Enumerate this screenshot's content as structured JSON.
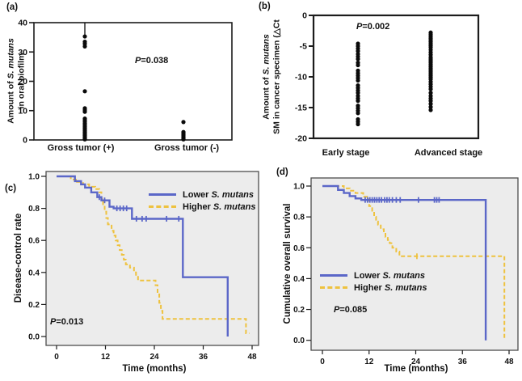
{
  "colors": {
    "lower_line": "#5b67c8",
    "higher_line": "#eec23f",
    "dot": "#0a0a0a",
    "km_plot_bg": "#ececec",
    "axis": "#1c1c1c"
  },
  "chart_data": [
    {
      "panel_label": "(a)",
      "type": "scatter",
      "ylabel_prefix": "Amount of ",
      "ylabel_species": "S. mutans",
      "ylabel_line2": "in oral biofilm",
      "categories": [
        "Gross tumor (+)",
        "Gross tumor (-)"
      ],
      "ylim": [
        0,
        40
      ],
      "yticks": [
        40,
        30,
        20,
        10,
        0
      ],
      "p_label": "P",
      "p_value": "=0.038",
      "stem": {
        "category_index": 0,
        "from": 40,
        "to": 35.3
      },
      "groups": [
        [
          35.3,
          33.5,
          32.8,
          31.9,
          16.6,
          10.8,
          10.2,
          9.6,
          7.3,
          6.8,
          6.2,
          5.6,
          5.1,
          4.6,
          4.1,
          3.6,
          3.1,
          2.7,
          2.3,
          1.9,
          1.5,
          1.1,
          0.8,
          0.5,
          0.2
        ],
        [
          6.1,
          2.7,
          2.2,
          1.8,
          1.4,
          1.0,
          0.7,
          0.4,
          0.2
        ]
      ]
    },
    {
      "panel_label": "(b)",
      "type": "scatter",
      "ylabel_prefix": "Amount of ",
      "ylabel_species": "S. mutans",
      "ylabel_line2": "SM in cancer specimen (△Ct",
      "categories": [
        "Early stage",
        "Advanced stage"
      ],
      "ylim": [
        -20,
        0
      ],
      "yticks": [
        0,
        -5,
        -10,
        -15,
        -20
      ],
      "p_label": "P",
      "p_value": "=0.002",
      "groups": [
        [
          -4.6,
          -5.0,
          -5.4,
          -5.8,
          -6.3,
          -6.7,
          -7.1,
          -7.7,
          -8.1,
          -9.0,
          -9.4,
          -9.8,
          -10.2,
          -10.6,
          -11.4,
          -11.8,
          -12.2,
          -12.6,
          -13.1,
          -13.5,
          -13.9,
          -14.7,
          -15.1,
          -15.5,
          -15.9,
          -16.9,
          -17.3,
          -17.7
        ],
        [
          -2.8,
          -3.1,
          -3.4,
          -3.7,
          -4.0,
          -4.3,
          -4.6,
          -4.9,
          -5.2,
          -5.6,
          -6.0,
          -6.4,
          -6.8,
          -7.1,
          -7.4,
          -7.7,
          -8.0,
          -8.3,
          -8.6,
          -8.9,
          -9.2,
          -9.5,
          -9.8,
          -10.1,
          -10.4,
          -10.8,
          -11.2,
          -11.6,
          -12.0,
          -12.6,
          -13.1,
          -13.5,
          -13.9,
          -14.4,
          -14.9,
          -15.4
        ]
      ]
    },
    {
      "panel_label": "(c)",
      "type": "line",
      "subtype": "kaplan_meier",
      "ylabel": "Disease-control rate",
      "xlabel": "Time (months)",
      "ylim": [
        0,
        1
      ],
      "yticks": [
        1.0,
        0.8,
        0.6,
        0.4,
        0.2,
        0.0
      ],
      "xlim": [
        0,
        48
      ],
      "xticks": [
        0,
        12,
        24,
        36,
        48
      ],
      "p_label": "P",
      "p_value": "=0.013",
      "legend": {
        "lower_prefix": "Lower ",
        "higher_prefix": "Higher ",
        "species": "S. mutans"
      },
      "series": [
        {
          "name": "Lower S. mutans",
          "color": "#5b67c8",
          "style": "solid",
          "steps": [
            [
              0,
              1
            ],
            [
              4.5,
              1
            ],
            [
              4.5,
              0.97
            ],
            [
              6,
              0.97
            ],
            [
              6,
              0.95
            ],
            [
              7,
              0.95
            ],
            [
              7,
              0.93
            ],
            [
              8.5,
              0.93
            ],
            [
              8.5,
              0.9
            ],
            [
              10,
              0.9
            ],
            [
              10,
              0.87
            ],
            [
              11,
              0.87
            ],
            [
              11,
              0.85
            ],
            [
              13,
              0.85
            ],
            [
              13,
              0.81
            ],
            [
              14,
              0.81
            ],
            [
              14,
              0.8
            ],
            [
              18.5,
              0.8
            ],
            [
              18.5,
              0.735
            ],
            [
              31,
              0.735
            ],
            [
              31,
              0.37
            ],
            [
              42,
              0.37
            ],
            [
              42,
              0
            ]
          ],
          "censors": [
            [
              10.5,
              0.87
            ],
            [
              11.8,
              0.85
            ],
            [
              14.8,
              0.8
            ],
            [
              15.6,
              0.8
            ],
            [
              16.4,
              0.8
            ],
            [
              17.2,
              0.8
            ],
            [
              19.6,
              0.735
            ],
            [
              21,
              0.735
            ],
            [
              22,
              0.735
            ],
            [
              27,
              0.735
            ],
            [
              30,
              0.735
            ]
          ]
        },
        {
          "name": "Higher S. mutans",
          "color": "#eec23f",
          "style": "dashed",
          "steps": [
            [
              0,
              1
            ],
            [
              3.5,
              1
            ],
            [
              3.5,
              0.98
            ],
            [
              5,
              0.98
            ],
            [
              5,
              0.965
            ],
            [
              6.5,
              0.965
            ],
            [
              6.5,
              0.95
            ],
            [
              8,
              0.95
            ],
            [
              8,
              0.935
            ],
            [
              9.5,
              0.935
            ],
            [
              9.5,
              0.92
            ],
            [
              10.5,
              0.92
            ],
            [
              10.5,
              0.9
            ],
            [
              11,
              0.9
            ],
            [
              11,
              0.86
            ],
            [
              11.4,
              0.86
            ],
            [
              11.4,
              0.82
            ],
            [
              11.8,
              0.82
            ],
            [
              11.8,
              0.78
            ],
            [
              12.2,
              0.78
            ],
            [
              12.2,
              0.74
            ],
            [
              12.6,
              0.74
            ],
            [
              12.6,
              0.7
            ],
            [
              13.5,
              0.7
            ],
            [
              13.5,
              0.66
            ],
            [
              14,
              0.66
            ],
            [
              14,
              0.63
            ],
            [
              14.5,
              0.63
            ],
            [
              14.5,
              0.6
            ],
            [
              15,
              0.6
            ],
            [
              15,
              0.57
            ],
            [
              15.5,
              0.57
            ],
            [
              15.5,
              0.54
            ],
            [
              16,
              0.54
            ],
            [
              16,
              0.51
            ],
            [
              16.5,
              0.51
            ],
            [
              16.5,
              0.48
            ],
            [
              17,
              0.48
            ],
            [
              17,
              0.45
            ],
            [
              18,
              0.45
            ],
            [
              18,
              0.43
            ],
            [
              19,
              0.43
            ],
            [
              19,
              0.4
            ],
            [
              19.5,
              0.4
            ],
            [
              19.5,
              0.38
            ],
            [
              20,
              0.38
            ],
            [
              20,
              0.35
            ],
            [
              24.3,
              0.35
            ],
            [
              24.3,
              0.32
            ],
            [
              24.8,
              0.32
            ],
            [
              24.8,
              0.27
            ],
            [
              25.2,
              0.27
            ],
            [
              25.2,
              0.21
            ],
            [
              25.6,
              0.21
            ],
            [
              25.6,
              0.16
            ],
            [
              26,
              0.16
            ],
            [
              26,
              0.11
            ],
            [
              46.5,
              0.11
            ],
            [
              46.5,
              0.02
            ],
            [
              47.3,
              0.02
            ]
          ],
          "censors": []
        }
      ]
    },
    {
      "panel_label": "(d)",
      "type": "line",
      "subtype": "kaplan_meier",
      "ylabel": "Cumulative overall survival",
      "xlabel": "Time (months)",
      "ylim": [
        0,
        1
      ],
      "yticks": [
        1.0,
        0.8,
        0.6,
        0.4,
        0.2,
        0.0
      ],
      "xlim": [
        0,
        48
      ],
      "xticks": [
        0,
        12,
        24,
        36,
        48
      ],
      "p_label": "P",
      "p_value": "=0.085",
      "legend": {
        "lower_prefix": "Lower ",
        "higher_prefix": "Higher ",
        "species": "S. mutans"
      },
      "series": [
        {
          "name": "Lower S. mutans",
          "color": "#5b67c8",
          "style": "solid",
          "steps": [
            [
              0,
              1
            ],
            [
              4,
              1
            ],
            [
              4,
              0.975
            ],
            [
              5.5,
              0.975
            ],
            [
              5.5,
              0.955
            ],
            [
              7,
              0.955
            ],
            [
              7,
              0.935
            ],
            [
              8.5,
              0.935
            ],
            [
              8.5,
              0.92
            ],
            [
              10,
              0.92
            ],
            [
              10,
              0.91
            ],
            [
              42,
              0.91
            ],
            [
              42,
              0
            ]
          ],
          "censors": [
            [
              11,
              0.91
            ],
            [
              11.6,
              0.91
            ],
            [
              12.2,
              0.91
            ],
            [
              12.8,
              0.91
            ],
            [
              13.4,
              0.91
            ],
            [
              14,
              0.91
            ],
            [
              14.6,
              0.91
            ],
            [
              15.2,
              0.91
            ],
            [
              16,
              0.91
            ],
            [
              16.6,
              0.91
            ],
            [
              17.2,
              0.91
            ],
            [
              18,
              0.91
            ],
            [
              19,
              0.91
            ],
            [
              20,
              0.91
            ],
            [
              24.7,
              0.91
            ],
            [
              28.8,
              0.91
            ],
            [
              29.4,
              0.91
            ],
            [
              30,
              0.91
            ]
          ]
        },
        {
          "name": "Higher S. mutans",
          "color": "#eec23f",
          "style": "dashed",
          "steps": [
            [
              0,
              1
            ],
            [
              5.5,
              1
            ],
            [
              5.5,
              0.985
            ],
            [
              7,
              0.985
            ],
            [
              7,
              0.97
            ],
            [
              8.5,
              0.97
            ],
            [
              8.5,
              0.955
            ],
            [
              10.5,
              0.955
            ],
            [
              10.5,
              0.93
            ],
            [
              11.5,
              0.93
            ],
            [
              11.5,
              0.915
            ],
            [
              12,
              0.915
            ],
            [
              12,
              0.87
            ],
            [
              12.8,
              0.87
            ],
            [
              12.8,
              0.84
            ],
            [
              13.3,
              0.84
            ],
            [
              13.3,
              0.8
            ],
            [
              13.8,
              0.8
            ],
            [
              13.8,
              0.77
            ],
            [
              14.3,
              0.77
            ],
            [
              14.3,
              0.75
            ],
            [
              15,
              0.75
            ],
            [
              15,
              0.72
            ],
            [
              15.8,
              0.72
            ],
            [
              15.8,
              0.7
            ],
            [
              16.2,
              0.7
            ],
            [
              16.2,
              0.67
            ],
            [
              16.8,
              0.67
            ],
            [
              16.8,
              0.65
            ],
            [
              17.3,
              0.65
            ],
            [
              17.3,
              0.63
            ],
            [
              18,
              0.63
            ],
            [
              18,
              0.6
            ],
            [
              19,
              0.6
            ],
            [
              19,
              0.575
            ],
            [
              19.8,
              0.575
            ],
            [
              19.8,
              0.545
            ],
            [
              46.8,
              0.545
            ],
            [
              46.8,
              0
            ]
          ],
          "censors": [
            [
              24.3,
              0.545
            ]
          ]
        }
      ]
    }
  ]
}
